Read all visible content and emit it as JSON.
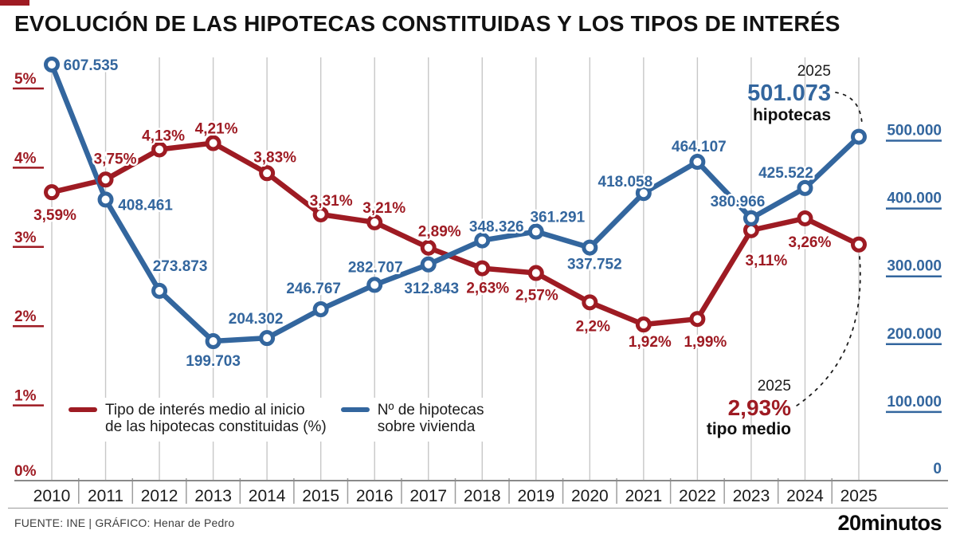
{
  "header": {
    "title": "EVOLUCIÓN DE LAS HIPOTECAS CONSTITUIDAS Y LOS TIPOS DE INTERÉS"
  },
  "legend": {
    "items": [
      {
        "line1": "Tipo de interés medio al inicio",
        "line2": "de las hipotecas constituidas (%)",
        "color": "#9E1B23"
      },
      {
        "line1": "Nº de hipotecas",
        "line2": "sobre vivienda",
        "color": "#33669E"
      }
    ]
  },
  "footer": {
    "source": "FUENTE: INE | GRÁFICO: Henar de Pedro",
    "logo": "20minutos"
  },
  "colors": {
    "rate_red": "#9E1B23",
    "count_blue": "#33669E",
    "grid_gray": "#c7c7c7",
    "axis_gray": "#8a8a8a"
  },
  "chart_data": {
    "type": "line",
    "title": "EVOLUCIÓN DE LAS HIPOTECAS CONSTITUIDAS Y LOS TIPOS DE INTERÉS",
    "x": [
      "2010",
      "2011",
      "2012",
      "2013",
      "2014",
      "2015",
      "2016",
      "2017",
      "2018",
      "2019",
      "2020",
      "2021",
      "2022",
      "2023",
      "2024",
      "2025"
    ],
    "grid": "vertical",
    "legend_position": "bottom-left-inside",
    "left_axis": {
      "unit": "%",
      "range": [
        0,
        5.6
      ],
      "ticks": [
        {
          "label": "5%",
          "value": 5
        },
        {
          "label": "4%",
          "value": 4
        },
        {
          "label": "3%",
          "value": 3
        },
        {
          "label": "2%",
          "value": 2
        },
        {
          "label": "1%",
          "value": 1
        },
        {
          "label": "0%",
          "value": 0,
          "underline": false
        }
      ]
    },
    "right_axis": {
      "unit": "hipotecas",
      "range": [
        0,
        660000
      ],
      "ticks": [
        {
          "label": "500.000",
          "value": 500000
        },
        {
          "label": "400.000",
          "value": 400000
        },
        {
          "label": "300.000",
          "value": 300000
        },
        {
          "label": "200.000",
          "value": 200000
        },
        {
          "label": "100.000",
          "value": 100000
        },
        {
          "label": "0",
          "value": 0,
          "underline": false
        }
      ]
    },
    "series": [
      {
        "name": "Tipo de interés medio al inicio de las hipotecas constituidas (%)",
        "axis": "left",
        "color": "#9E1B23",
        "values": [
          3.59,
          3.75,
          4.13,
          4.21,
          3.83,
          3.31,
          3.21,
          2.89,
          2.63,
          2.57,
          2.2,
          1.92,
          1.99,
          3.11,
          3.26,
          2.93
        ],
        "labels": [
          "3,59%",
          "3,75%",
          "4,13%",
          "4,21%",
          "3,83%",
          "3,31%",
          "3,21%",
          "2,89%",
          "2,63%",
          "2,57%",
          "2,2%",
          "1,92%",
          "1,99%",
          "3,11%",
          "3,26%",
          ""
        ],
        "label_offsets": [
          [
            4,
            35
          ],
          [
            12,
            -20
          ],
          [
            5,
            -11
          ],
          [
            4,
            -12
          ],
          [
            10,
            -14
          ],
          [
            13,
            -11
          ],
          [
            12,
            -12
          ],
          [
            14,
            -14
          ],
          [
            7,
            31
          ],
          [
            1,
            34
          ],
          [
            4,
            36
          ],
          [
            8,
            28
          ],
          [
            10,
            35
          ],
          [
            19,
            44
          ],
          [
            6,
            36
          ],
          [
            0,
            0
          ]
        ]
      },
      {
        "name": "Nº de hipotecas sobre vivienda",
        "axis": "right",
        "color": "#33669E",
        "values": [
          607535,
          408461,
          273873,
          199703,
          204302,
          246767,
          282707,
          312843,
          348326,
          361291,
          337752,
          418058,
          464107,
          380966,
          425522,
          501073
        ],
        "labels": [
          "607.535",
          "408.461",
          "273.873",
          "199.703",
          "204.302",
          "246.767",
          "282.707",
          "312.843",
          "348.326",
          "361.291",
          "337.752",
          "418.058",
          "464.107",
          "380.966",
          "425.522",
          ""
        ],
        "label_offsets": [
          [
            49,
            7
          ],
          [
            50,
            13
          ],
          [
            26,
            -25
          ],
          [
            0,
            31
          ],
          [
            -14,
            -18
          ],
          [
            -9,
            -20
          ],
          [
            1,
            -16
          ],
          [
            4,
            36
          ],
          [
            18,
            -11
          ],
          [
            27,
            -12
          ],
          [
            6,
            27
          ],
          [
            -23,
            -8
          ],
          [
            2,
            -13
          ],
          [
            -17,
            -15
          ],
          [
            -24,
            -13
          ],
          [
            0,
            0
          ]
        ],
        "leader_index": 13
      }
    ],
    "annotations": [
      {
        "id": "top",
        "year": "2025",
        "value": "501.073",
        "label": "hipotecas",
        "color": "#33669E"
      },
      {
        "id": "bottom",
        "year": "2025",
        "value": "2,93%",
        "label": "tipo medio",
        "color": "#9E1B23"
      }
    ]
  }
}
